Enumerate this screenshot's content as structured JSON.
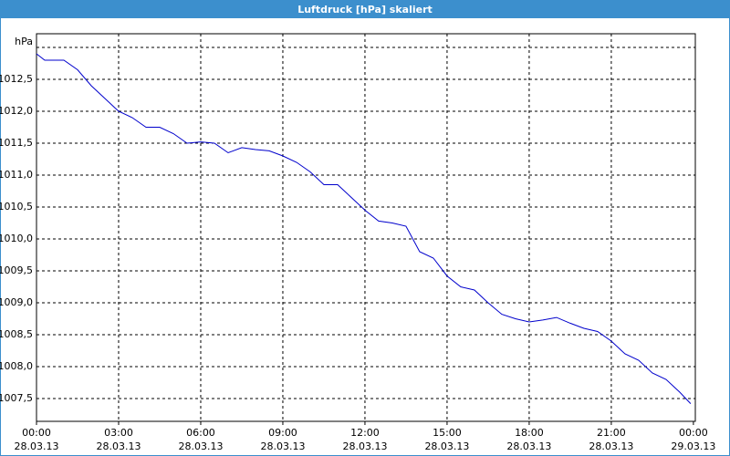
{
  "chart_data": {
    "type": "line",
    "title": "Luftdruck [hPa] skaliert",
    "x": [
      0,
      0.3,
      1,
      1.5,
      2,
      2.5,
      3,
      3.5,
      4,
      4.5,
      5,
      5.5,
      6,
      6.5,
      7,
      7.5,
      8,
      8.5,
      9,
      9.5,
      10,
      10.5,
      11,
      11.5,
      12,
      12.5,
      13,
      13.5,
      14,
      14.5,
      15,
      15.5,
      16,
      16.5,
      17,
      17.5,
      18,
      18.5,
      19,
      19.5,
      20,
      20.5,
      21,
      21.5,
      22,
      22.5,
      23,
      23.5,
      23.9
    ],
    "series": [
      {
        "name": "Luftdruck",
        "color": "#0000cc",
        "values": [
          1012.9,
          1012.8,
          1012.8,
          1012.65,
          1012.4,
          1012.2,
          1012.0,
          1011.9,
          1011.75,
          1011.75,
          1011.65,
          1011.5,
          1011.52,
          1011.5,
          1011.35,
          1011.43,
          1011.4,
          1011.38,
          1011.3,
          1011.2,
          1011.05,
          1010.85,
          1010.85,
          1010.65,
          1010.45,
          1010.28,
          1010.25,
          1010.2,
          1009.8,
          1009.7,
          1009.42,
          1009.25,
          1009.2,
          1009.0,
          1008.82,
          1008.75,
          1008.7,
          1008.73,
          1008.77,
          1008.68,
          1008.6,
          1008.55,
          1008.4,
          1008.2,
          1008.1,
          1007.9,
          1007.8,
          1007.6,
          1007.42
        ]
      }
    ],
    "xlim": [
      0,
      24.07
    ],
    "xticks": [
      {
        "value": 0,
        "label": "00:00"
      },
      {
        "value": 3,
        "label": "03:00"
      },
      {
        "value": 6,
        "label": "06:00"
      },
      {
        "value": 9,
        "label": "09:00"
      },
      {
        "value": 12,
        "label": "12:00"
      },
      {
        "value": 15,
        "label": "15:00"
      },
      {
        "value": 18,
        "label": "18:00"
      },
      {
        "value": 21,
        "label": "21:00"
      },
      {
        "value": 24,
        "label": "00:00"
      }
    ],
    "xtick_dates": [
      "28.03.13",
      "28.03.13",
      "28.03.13",
      "28.03.13",
      "28.03.13",
      "28.03.13",
      "28.03.13",
      "28.03.13",
      "29.03.13"
    ],
    "ylim": [
      1007.143,
      1013.214
    ],
    "yticks": [
      {
        "value": 1007.5,
        "label": "1007,5"
      },
      {
        "value": 1008,
        "label": "1008,0"
      },
      {
        "value": 1008.5,
        "label": "1008,5"
      },
      {
        "value": 1009,
        "label": "1009,0"
      },
      {
        "value": 1009.5,
        "label": "1009,5"
      },
      {
        "value": 1010,
        "label": "1010,0"
      },
      {
        "value": 1010.5,
        "label": "1010,5"
      },
      {
        "value": 1011,
        "label": "1011,0"
      },
      {
        "value": 1011.5,
        "label": "1011,5"
      },
      {
        "value": 1012,
        "label": "1012,0"
      },
      {
        "value": 1012.5,
        "label": "1012,5"
      },
      {
        "value": 1013,
        "label": "hPa"
      }
    ],
    "grid": true
  }
}
